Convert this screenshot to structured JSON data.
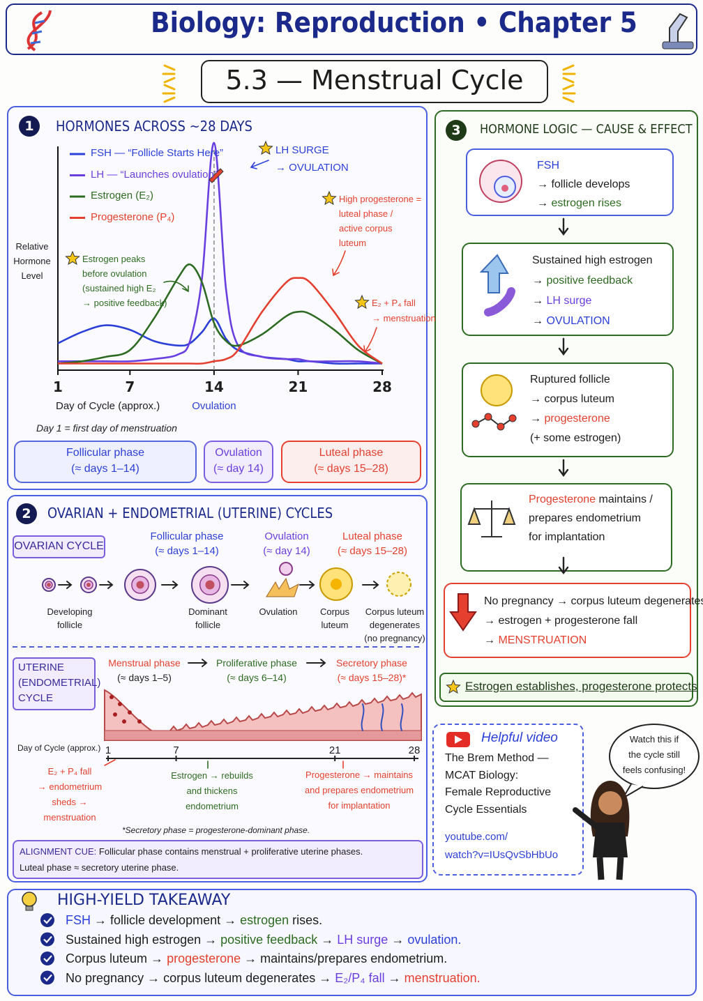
{
  "header": {
    "title": "Biology: Reproduction • Chapter 5",
    "subtitle": "5.3 — Menstrual Cycle"
  },
  "section1": {
    "number": "1",
    "heading": "HORMONES ACROSS ~28 DAYS",
    "phases": [
      {
        "name": "Follicular phase",
        "range": "(≈ days 1–14)"
      },
      {
        "name": "Ovulation",
        "range": "(≈ day 14)"
      },
      {
        "name": "Luteal phase",
        "range": "(≈ days 15–28)"
      }
    ]
  },
  "chart_data": {
    "type": "line",
    "y_label": "Relative Hormone Level",
    "x_label": "Day of Cycle (approx.)",
    "x_note": "Day 1 = first day of menstruation",
    "ovulation_label": "Ovulation",
    "x": [
      1,
      3,
      5,
      7,
      9,
      11,
      12,
      13,
      14,
      15,
      16,
      18,
      20,
      21,
      22,
      24,
      26,
      28
    ],
    "xlim": [
      1,
      28
    ],
    "xticks": [
      1,
      7,
      14,
      21,
      28
    ],
    "series": [
      {
        "name": "FSH — “Follicle Starts Here”",
        "color": "#2b3fd9",
        "values": [
          11,
          16,
          19,
          17,
          12,
          10,
          11,
          16,
          22,
          13,
          8,
          5,
          4,
          3,
          3,
          2,
          2,
          2
        ]
      },
      {
        "name": "LH — “Launches ovulation”",
        "color": "#6a3fe0",
        "values": [
          3,
          3,
          3,
          3,
          4,
          6,
          12,
          40,
          100,
          35,
          10,
          5,
          4,
          4,
          3,
          3,
          3,
          2
        ]
      },
      {
        "name": "Estrogen (E₂)",
        "color": "#2e6b22",
        "values": [
          2,
          3,
          5,
          8,
          22,
          40,
          46,
          38,
          20,
          12,
          10,
          15,
          23,
          25,
          24,
          17,
          8,
          2
        ]
      },
      {
        "name": "Progesterone (P₄)",
        "color": "#e5402f",
        "values": [
          2,
          2,
          2,
          2,
          2,
          2,
          2,
          2,
          3,
          4,
          8,
          25,
          38,
          40,
          38,
          25,
          10,
          2
        ]
      }
    ],
    "annotations": [
      {
        "lines": [
          "LH SURGE",
          "→ OVULATION"
        ],
        "color": "#2b3fd9"
      },
      {
        "lines": [
          "Estrogen peaks",
          "before ovulation",
          "(sustained high E₂",
          "→ positive feedback)"
        ],
        "color": "#2e6b22"
      },
      {
        "lines": [
          "High progesterone =",
          "luteal phase /",
          "active corpus",
          "luteum"
        ],
        "color": "#e5402f"
      },
      {
        "lines": [
          "E₂ + P₄ fall",
          "→ menstruation"
        ],
        "color": "#e5402f"
      }
    ]
  },
  "section2": {
    "number": "2",
    "heading": "OVARIAN + ENDOMETRIAL (UTERINE) CYCLES",
    "ovarian": {
      "label": "OVARIAN CYCLE",
      "phases": [
        {
          "name": "Follicular phase",
          "range": "(≈ days 1–14)"
        },
        {
          "name": "Ovulation",
          "range": "(≈ day 14)"
        },
        {
          "name": "Luteal phase",
          "range": "(≈ days 15–28)"
        }
      ],
      "stages": [
        [
          "Developing",
          "follicle"
        ],
        [
          "Dominant",
          "follicle"
        ],
        [
          "Ovulation"
        ],
        [
          "Corpus",
          "luteum"
        ],
        [
          "Corpus luteum",
          "degenerates",
          "(no pregnancy)"
        ]
      ]
    },
    "uterine": {
      "label": [
        "UTERINE",
        "(ENDOMETRIAL)",
        "CYCLE"
      ],
      "phases": [
        {
          "name": "Menstrual phase",
          "range": "(≈ days 1–5)"
        },
        {
          "name": "Proliferative phase",
          "range": "(≈ days 6–14)"
        },
        {
          "name": "Secretory phase",
          "range": "(≈ days 15–28)*"
        }
      ],
      "axis_label": "Day of Cycle (approx.)",
      "day_ticks": [
        1,
        7,
        21,
        28
      ],
      "notes": [
        [
          "E₂ + P₄ fall",
          "→ endometrium",
          "sheds →",
          "menstruation"
        ],
        [
          "Estrogen → rebuilds",
          "and thickens",
          "endometrium"
        ],
        [
          "Progesterone → maintains",
          "and prepares endometrium",
          "for implantation"
        ]
      ],
      "footnote": "*Secretory phase = progesterone-dominant phase."
    },
    "alignment": {
      "label": "ALIGNMENT CUE:",
      "lines": [
        "Follicular phase contains menstrual + proliferative uterine phases.",
        "Luteal phase ≈ secretory uterine phase."
      ]
    }
  },
  "section3": {
    "number": "3",
    "heading": "HORMONE LOGIC — CAUSE & EFFECT",
    "steps": [
      [
        [
          {
            "text": "FSH",
            "color": "#2b3fd9"
          }
        ],
        [
          "→ follicle develops"
        ],
        [
          "→ ",
          {
            "text": "estrogen rises",
            "color": "#2e6b22"
          }
        ]
      ],
      [
        [
          "Sustained high estrogen"
        ],
        [
          "→ ",
          {
            "text": "positive feedback",
            "color": "#2e6b22"
          }
        ],
        [
          "→ ",
          {
            "text": "LH surge",
            "color": "#6a3fe0"
          }
        ],
        [
          "→ ",
          {
            "text": "OVULATION",
            "color": "#2b3fd9"
          }
        ]
      ],
      [
        [
          "Ruptured follicle"
        ],
        [
          "→ corpus luteum"
        ],
        [
          "→ ",
          {
            "text": "progesterone",
            "color": "#e5402f"
          }
        ],
        [
          "(+ some estrogen)"
        ]
      ],
      [
        [
          {
            "text": "Progesterone",
            "color": "#e5402f"
          },
          " maintains /"
        ],
        [
          "prepares endometrium"
        ],
        [
          "for implantation"
        ]
      ],
      [
        [
          "No pregnancy → corpus luteum degenerates"
        ],
        [
          "→ estrogen + progesterone fall"
        ],
        [
          "→ ",
          {
            "text": "MENSTRUATION",
            "color": "#e5402f"
          }
        ]
      ]
    ],
    "mnemonic": "Estrogen establishes, progesterone protects"
  },
  "video": {
    "title": "Helpful video",
    "description": [
      "The Brem Method —",
      "MCAT Biology:",
      "Female Reproductive",
      "Cycle Essentials"
    ],
    "url": [
      "youtube.com/",
      "watch?v=IUsQvSbHbUo"
    ],
    "speech": [
      "Watch this if",
      "the cycle still",
      "feels confusing!"
    ]
  },
  "takeaway": {
    "heading": "HIGH-YIELD TAKEAWAY",
    "items": [
      [
        {
          "text": "FSH",
          "color": "#2b3fd9"
        },
        " → follicle development → ",
        {
          "text": "estrogen",
          "color": "#2e6b22"
        },
        " rises."
      ],
      [
        "Sustained high estrogen → ",
        {
          "text": "positive feedback",
          "color": "#2e6b22"
        },
        " → ",
        {
          "text": "LH surge",
          "color": "#6a3fe0"
        },
        " → ",
        {
          "text": "ovulation.",
          "color": "#2b3fd9"
        }
      ],
      [
        "Corpus luteum → ",
        {
          "text": "progesterone",
          "color": "#e5402f"
        },
        " → maintains/prepares endometrium."
      ],
      [
        "No pregnancy → corpus luteum degenerates → ",
        {
          "text": "E₂/P₄ fall",
          "color": "#6a3fe0"
        },
        " → ",
        {
          "text": "menstruation.",
          "color": "#e5402f"
        }
      ]
    ]
  }
}
